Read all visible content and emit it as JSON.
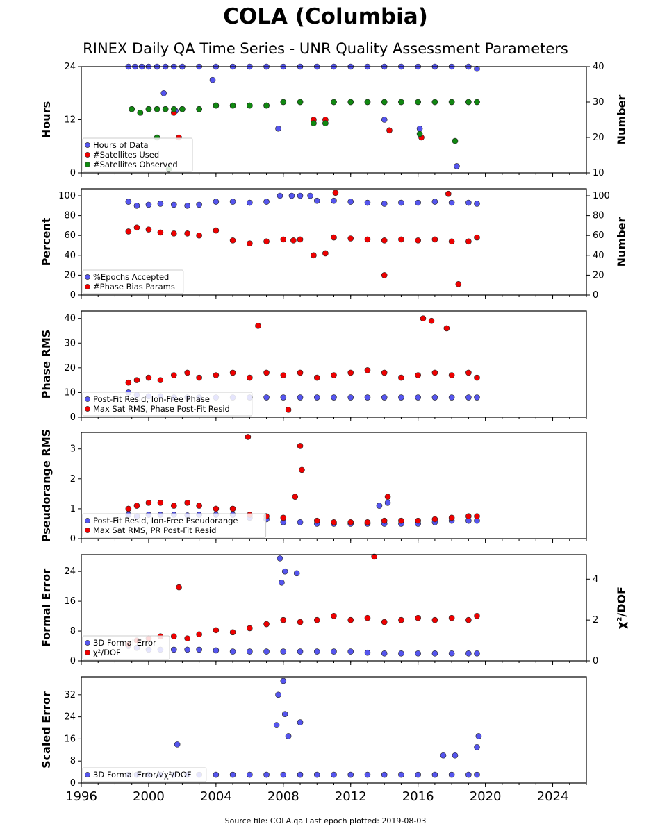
{
  "title": "COLA (Columbia)",
  "subtitle": "RINEX Daily QA Time Series - UNR Quality Assessment Parameters",
  "footer": "Source file: COLA.qa Last epoch plotted: 2019-08-03",
  "colors": {
    "blue": "#5555ee",
    "red": "#ee0000",
    "green": "#118811",
    "edge": "#222222"
  },
  "chart_data": [
    {
      "type": "scatter",
      "ylabel": "Hours",
      "ylabel_right": "Number",
      "xlim": [
        1996,
        2026
      ],
      "ylim": [
        0,
        24
      ],
      "ylim_right": [
        10,
        40
      ],
      "yticks": [
        "0",
        "12",
        "24"
      ],
      "yticks_right": [
        "10",
        "20",
        "30",
        "40"
      ],
      "legend": "lower-left",
      "series": [
        {
          "name": "Hours of Data",
          "color": "blue",
          "axis": "left",
          "x": [
            1998.8,
            1999.2,
            1999.6,
            2000.0,
            2000.5,
            2001.0,
            2001.5,
            2002.0,
            2003.0,
            2004.0,
            2005.0,
            2006.0,
            2007.0,
            2008.0,
            2009.0,
            2010.0,
            2011.0,
            2012.0,
            2013.0,
            2014.0,
            2015.0,
            2016.0,
            2017.0,
            2018.0,
            2019.0,
            2019.5,
            2000.9,
            2001.6,
            2003.8,
            2007.7,
            2014.0,
            2016.1,
            2018.3
          ],
          "y": [
            24,
            24,
            24,
            24,
            24,
            24,
            24,
            24,
            24,
            24,
            24,
            24,
            24,
            24,
            24,
            24,
            24,
            24,
            24,
            24,
            24,
            24,
            24,
            24,
            24,
            23.5,
            18,
            14,
            21,
            10,
            12,
            10,
            1.5
          ]
        },
        {
          "name": "#Satellites Used",
          "color": "red",
          "axis": "right",
          "x": [
            1999.0,
            1999.5,
            2000.0,
            2000.5,
            2001.0,
            2001.5,
            2002.0,
            2003.0,
            2004.0,
            2005.0,
            2006.0,
            2007.0,
            2008.0,
            2009.0,
            2009.8,
            2010.5,
            2011.0,
            2012.0,
            2013.0,
            2014.0,
            2015.0,
            2016.0,
            2017.0,
            2018.0,
            2019.0,
            2019.5,
            2001.8,
            2014.3,
            2016.2
          ],
          "y": [
            28,
            27,
            28,
            28,
            28,
            27,
            28,
            28,
            29,
            29,
            29,
            29,
            30,
            30,
            25,
            25,
            30,
            30,
            30,
            30,
            30,
            30,
            30,
            30,
            30,
            30,
            20,
            22,
            20
          ]
        },
        {
          "name": "#Satellites Observed",
          "color": "green",
          "axis": "right",
          "x": [
            1999.0,
            1999.5,
            2000.0,
            2000.5,
            2001.0,
            2001.5,
            2002.0,
            2003.0,
            2004.0,
            2005.0,
            2006.0,
            2007.0,
            2008.0,
            2009.0,
            2009.8,
            2010.5,
            2011.0,
            2012.0,
            2013.0,
            2014.0,
            2015.0,
            2016.0,
            2017.0,
            2018.0,
            2019.0,
            2019.5,
            2000.5,
            2001.2,
            2016.1,
            2018.2
          ],
          "y": [
            28,
            27,
            28,
            28,
            28,
            28,
            28,
            28,
            29,
            29,
            29,
            29,
            30,
            30,
            24,
            24,
            30,
            30,
            30,
            30,
            30,
            30,
            30,
            30,
            30,
            30,
            20,
            11,
            21,
            19
          ]
        }
      ]
    },
    {
      "type": "scatter",
      "ylabel": "Percent",
      "ylabel_right": "Number",
      "xlim": [
        1996,
        2026
      ],
      "ylim": [
        0,
        107
      ],
      "ylim_right": [
        0,
        107
      ],
      "yticks": [
        "0",
        "20",
        "40",
        "60",
        "80",
        "100"
      ],
      "yticks_right": [
        "0",
        "20",
        "40",
        "60",
        "80",
        "100"
      ],
      "legend": "lower-left",
      "series": [
        {
          "name": "%Epochs Accepted",
          "color": "blue",
          "axis": "left",
          "x": [
            1998.8,
            1999.3,
            2000.0,
            2000.7,
            2001.5,
            2002.3,
            2003.0,
            2004.0,
            2005.0,
            2006.0,
            2007.0,
            2007.8,
            2008.5,
            2009.0,
            2009.6,
            2010.0,
            2011.0,
            2012.0,
            2013.0,
            2014.0,
            2015.0,
            2016.0,
            2017.0,
            2018.0,
            2019.0,
            2019.5
          ],
          "y": [
            94,
            90,
            91,
            92,
            91,
            90,
            91,
            94,
            94,
            93,
            94,
            100,
            100,
            100,
            100,
            95,
            95,
            94,
            93,
            92,
            93,
            93,
            94,
            93,
            93,
            92
          ]
        },
        {
          "name": "#Phase Bias Params",
          "color": "red",
          "axis": "right",
          "x": [
            1998.8,
            1999.3,
            2000.0,
            2000.7,
            2001.5,
            2002.3,
            2003.0,
            2004.0,
            2005.0,
            2006.0,
            2007.0,
            2008.0,
            2008.6,
            2009.0,
            2009.8,
            2010.5,
            2011.0,
            2012.0,
            2013.0,
            2014.0,
            2015.0,
            2016.0,
            2017.0,
            2018.0,
            2019.0,
            2019.5,
            2011.1,
            2014.0,
            2017.8,
            2018.4
          ],
          "y": [
            64,
            68,
            66,
            63,
            62,
            62,
            60,
            65,
            55,
            52,
            54,
            56,
            55,
            56,
            40,
            42,
            58,
            57,
            56,
            55,
            56,
            55,
            56,
            54,
            54,
            58,
            103,
            20,
            102,
            11
          ]
        }
      ]
    },
    {
      "type": "scatter",
      "ylabel": "Phase RMS",
      "xlim": [
        1996,
        2026
      ],
      "ylim": [
        0,
        43
      ],
      "yticks": [
        "0",
        "10",
        "20",
        "30",
        "40"
      ],
      "legend": "lower-left",
      "series": [
        {
          "name": "Post-Fit Resid, Ion-Free Phase",
          "color": "blue",
          "x": [
            1998.8,
            1999.3,
            2000.0,
            2000.7,
            2001.5,
            2002.3,
            2003.0,
            2004.0,
            2005.0,
            2006.0,
            2007.0,
            2008.0,
            2009.0,
            2010.0,
            2011.0,
            2012.0,
            2013.0,
            2014.0,
            2015.0,
            2016.0,
            2017.0,
            2018.0,
            2019.0,
            2019.5
          ],
          "y": [
            10,
            9,
            8.5,
            8.5,
            8,
            8,
            8,
            8,
            8,
            8,
            8,
            8,
            8,
            8,
            8,
            8,
            8,
            8,
            8,
            8,
            8,
            8,
            8,
            8
          ]
        },
        {
          "name": "Max Sat RMS, Phase Post-Fit Resid",
          "color": "red",
          "x": [
            1998.8,
            1999.3,
            2000.0,
            2000.7,
            2001.5,
            2002.3,
            2003.0,
            2004.0,
            2005.0,
            2006.0,
            2007.0,
            2008.0,
            2009.0,
            2010.0,
            2011.0,
            2012.0,
            2013.0,
            2014.0,
            2015.0,
            2016.0,
            2017.0,
            2018.0,
            2019.0,
            2019.5,
            2006.5,
            2016.3,
            2016.8,
            2017.7,
            2008.3
          ],
          "y": [
            14,
            15,
            16,
            15,
            17,
            18,
            16,
            17,
            18,
            16,
            18,
            17,
            18,
            16,
            17,
            18,
            19,
            18,
            16,
            17,
            18,
            17,
            18,
            16,
            37,
            40,
            39,
            36,
            3
          ]
        }
      ]
    },
    {
      "type": "scatter",
      "ylabel": "Pseudorange RMS",
      "xlim": [
        1996,
        2026
      ],
      "ylim": [
        0,
        3.55
      ],
      "yticks": [
        "0",
        "1",
        "2",
        "3"
      ],
      "legend": "lower-left",
      "series": [
        {
          "name": "Post-Fit Resid, Ion-Free Pseudorange",
          "color": "blue",
          "x": [
            1998.8,
            1999.3,
            2000.0,
            2000.7,
            2001.5,
            2002.3,
            2003.0,
            2004.0,
            2005.0,
            2006.0,
            2007.0,
            2008.0,
            2009.0,
            2010.0,
            2011.0,
            2012.0,
            2013.0,
            2014.0,
            2015.0,
            2016.0,
            2017.0,
            2018.0,
            2019.0,
            2019.5,
            2013.7,
            2014.2
          ],
          "y": [
            0.8,
            0.75,
            0.8,
            0.8,
            0.8,
            0.78,
            0.8,
            0.8,
            0.8,
            0.7,
            0.65,
            0.55,
            0.55,
            0.5,
            0.5,
            0.5,
            0.5,
            0.5,
            0.5,
            0.5,
            0.55,
            0.6,
            0.6,
            0.6,
            1.1,
            1.2
          ]
        },
        {
          "name": "Max Sat RMS, PR Post-Fit Resid",
          "color": "red",
          "x": [
            1998.8,
            1999.3,
            2000.0,
            2000.7,
            2001.5,
            2002.3,
            2003.0,
            2004.0,
            2005.0,
            2006.0,
            2007.0,
            2008.0,
            2008.7,
            2009.0,
            2009.1,
            2010.0,
            2011.0,
            2012.0,
            2013.0,
            2014.0,
            2015.0,
            2016.0,
            2017.0,
            2018.0,
            2019.0,
            2019.5,
            2005.9,
            2014.2
          ],
          "y": [
            1.0,
            1.1,
            1.2,
            1.2,
            1.1,
            1.2,
            1.1,
            1.0,
            1.0,
            0.8,
            0.75,
            0.7,
            1.4,
            3.1,
            2.3,
            0.6,
            0.55,
            0.55,
            0.55,
            0.6,
            0.6,
            0.6,
            0.65,
            0.7,
            0.75,
            0.75,
            3.4,
            1.4
          ]
        }
      ]
    },
    {
      "type": "scatter",
      "ylabel": "Formal Error",
      "ylabel_right": "χ²/DOF",
      "xlim": [
        1996,
        2026
      ],
      "ylim": [
        0,
        28.5
      ],
      "ylim_right": [
        0,
        5.2
      ],
      "yticks": [
        "0",
        "8",
        "16",
        "24"
      ],
      "yticks_right": [
        "0",
        "2",
        "4"
      ],
      "legend": "lower-left",
      "series": [
        {
          "name": "3D Formal Error",
          "color": "blue",
          "axis": "left",
          "x": [
            1998.8,
            1999.3,
            2000.0,
            2000.7,
            2001.5,
            2002.3,
            2003.0,
            2004.0,
            2005.0,
            2006.0,
            2007.0,
            2008.0,
            2009.0,
            2010.0,
            2011.0,
            2012.0,
            2013.0,
            2014.0,
            2015.0,
            2016.0,
            2017.0,
            2018.0,
            2019.0,
            2019.5,
            2007.8,
            2008.1,
            2007.9,
            2008.8
          ],
          "y": [
            4,
            3.5,
            3,
            3,
            3,
            3,
            3,
            2.8,
            2.5,
            2.5,
            2.5,
            2.5,
            2.5,
            2.5,
            2.5,
            2.5,
            2.2,
            2,
            2,
            2,
            2,
            2,
            2,
            2,
            27.5,
            24,
            21,
            23.5
          ]
        },
        {
          "name": "χ²/DOF",
          "color": "red",
          "axis": "right",
          "x": [
            1998.8,
            1999.3,
            2000.0,
            2000.7,
            2001.5,
            2002.3,
            2003.0,
            2004.0,
            2005.0,
            2006.0,
            2007.0,
            2008.0,
            2009.0,
            2010.0,
            2011.0,
            2012.0,
            2013.0,
            2014.0,
            2015.0,
            2016.0,
            2017.0,
            2018.0,
            2019.0,
            2019.5,
            2001.8,
            2013.4
          ],
          "y": [
            0.8,
            1.0,
            1.1,
            1.2,
            1.2,
            1.1,
            1.3,
            1.5,
            1.4,
            1.6,
            1.8,
            2.0,
            1.9,
            2.0,
            2.2,
            2.0,
            2.1,
            1.9,
            2.0,
            2.1,
            2.0,
            2.1,
            2.0,
            2.2,
            3.6,
            5.1
          ]
        }
      ]
    },
    {
      "type": "scatter",
      "ylabel": "Scaled Error",
      "xlim": [
        1996,
        2026
      ],
      "ylim": [
        0,
        38.5
      ],
      "yticks": [
        "0",
        "8",
        "16",
        "24",
        "32"
      ],
      "xticks": [
        "1996",
        "2000",
        "2004",
        "2008",
        "2012",
        "2016",
        "2020",
        "2024"
      ],
      "legend": "lower-left",
      "series": [
        {
          "name": "3D Formal Error/√χ²/DOF",
          "color": "blue",
          "x": [
            1998.8,
            1999.3,
            2000.0,
            2000.7,
            2001.5,
            2002.3,
            2003.0,
            2004.0,
            2005.0,
            2006.0,
            2007.0,
            2008.0,
            2009.0,
            2010.0,
            2011.0,
            2012.0,
            2013.0,
            2014.0,
            2015.0,
            2016.0,
            2017.0,
            2018.0,
            2019.0,
            2019.5,
            2007.7,
            2008.0,
            2007.6,
            2008.1,
            2008.3,
            2009.0,
            2001.7,
            2019.6,
            2019.5,
            2017.5,
            2018.2
          ],
          "y": [
            3,
            3,
            3,
            3,
            3,
            3,
            3,
            3,
            3,
            3,
            3,
            3,
            3,
            3,
            3,
            3,
            3,
            3,
            3,
            3,
            3,
            3,
            3,
            3,
            32,
            37,
            21,
            25,
            17,
            22,
            14,
            17,
            13,
            10,
            10
          ]
        }
      ]
    }
  ]
}
